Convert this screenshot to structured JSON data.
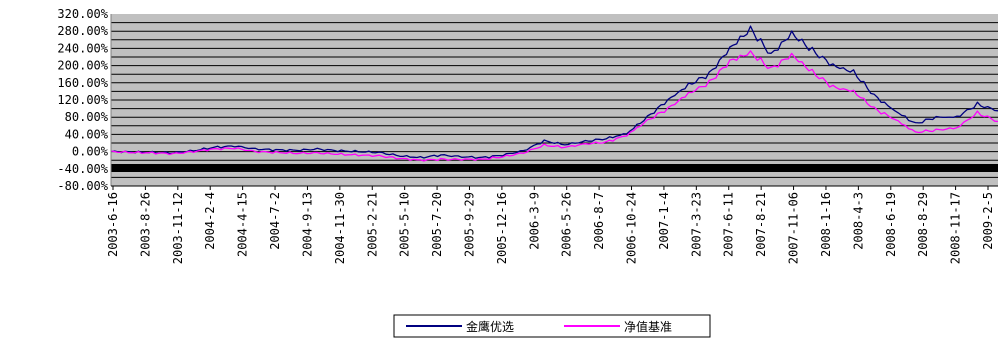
{
  "chart_data": {
    "type": "line",
    "title": "",
    "xlabel": "",
    "ylabel": "",
    "ylim": [
      -80,
      320
    ],
    "y_tick_step": 20,
    "y_tick_labels": [
      "320.00%",
      "280.00%",
      "240.00%",
      "200.00%",
      "160.00%",
      "120.00%",
      "80.00%",
      "40.00%",
      "0.00%",
      "-40.00%",
      "-80.00%"
    ],
    "x_tick_labels": [
      "2003-6-16",
      "2003-8-26",
      "2003-11-12",
      "2004-2-4",
      "2004-4-15",
      "2004-7-2",
      "2004-9-13",
      "2004-11-30",
      "2005-2-21",
      "2005-5-10",
      "2005-7-20",
      "2005-9-29",
      "2005-12-16",
      "2006-3-9",
      "2006-5-26",
      "2006-8-7",
      "2006-10-24",
      "2007-1-4",
      "2007-3-23",
      "2007-6-11",
      "2007-8-21",
      "2007-11-06",
      "2008-1-16",
      "2008-4-3",
      "2008-6-19",
      "2008-8-29",
      "2008-11-17",
      "2009-2-5"
    ],
    "plot_background": "#c0c0c0",
    "grid": true,
    "legend_position": "bottom",
    "series": [
      {
        "name": "金鹰优选",
        "color": "#000080",
        "values": [
          0,
          -1,
          -2,
          -3,
          2,
          10,
          13,
          6,
          4,
          3,
          6,
          2,
          0,
          -2,
          -10,
          -14,
          -8,
          -12,
          -14,
          -8,
          2,
          25,
          16,
          24,
          30,
          42,
          80,
          120,
          155,
          180,
          240,
          285,
          225,
          275,
          235,
          200,
          185,
          130,
          95,
          65,
          80,
          80,
          110,
          95
        ]
      },
      {
        "name": "净值基准",
        "color": "#ff00ff",
        "values": [
          0,
          -2,
          -3,
          -5,
          0,
          6,
          8,
          0,
          -2,
          -4,
          -3,
          -6,
          -8,
          -10,
          -16,
          -20,
          -18,
          -18,
          -18,
          -12,
          -3,
          15,
          10,
          18,
          22,
          38,
          72,
          100,
          135,
          160,
          210,
          230,
          192,
          225,
          185,
          150,
          140,
          100,
          75,
          45,
          50,
          55,
          90,
          70
        ]
      }
    ]
  }
}
